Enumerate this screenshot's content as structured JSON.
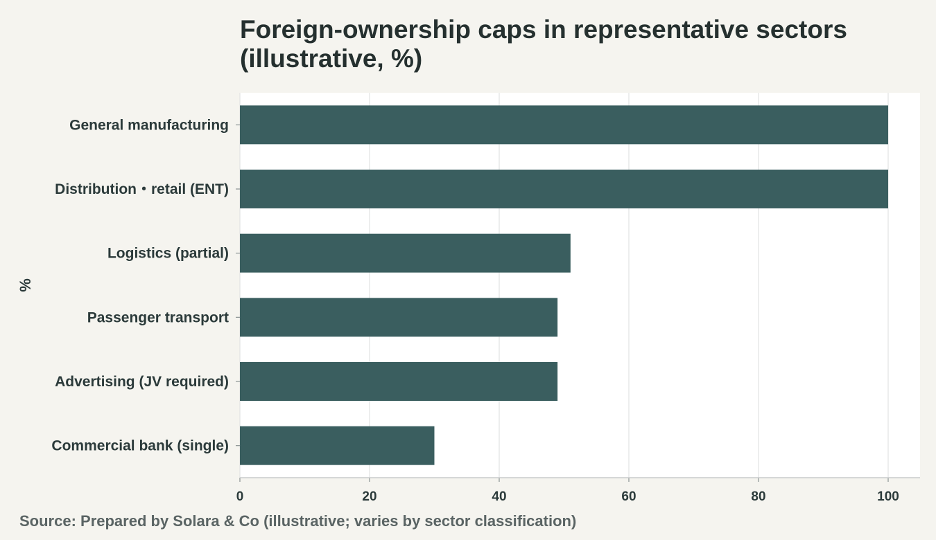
{
  "chart_data": {
    "type": "bar",
    "orientation": "horizontal",
    "title": "Foreign-ownership caps in representative sectors (illustrative, %)",
    "ylabel": "%",
    "xlabel": "",
    "categories": [
      "General manufacturing",
      "Distribution・retail (ENT)",
      "Logistics (partial)",
      "Passenger transport",
      "Advertising (JV required)",
      "Commercial bank (single)"
    ],
    "values": [
      100,
      100,
      51,
      49,
      49,
      30
    ],
    "xlim": [
      0,
      105
    ],
    "xticks": [
      0,
      20,
      40,
      60,
      80,
      100
    ],
    "grid": "vertical",
    "bar_color": "#3a5e5f"
  },
  "source": "Source: Prepared by Solara & Co (illustrative; varies by sector classification)"
}
